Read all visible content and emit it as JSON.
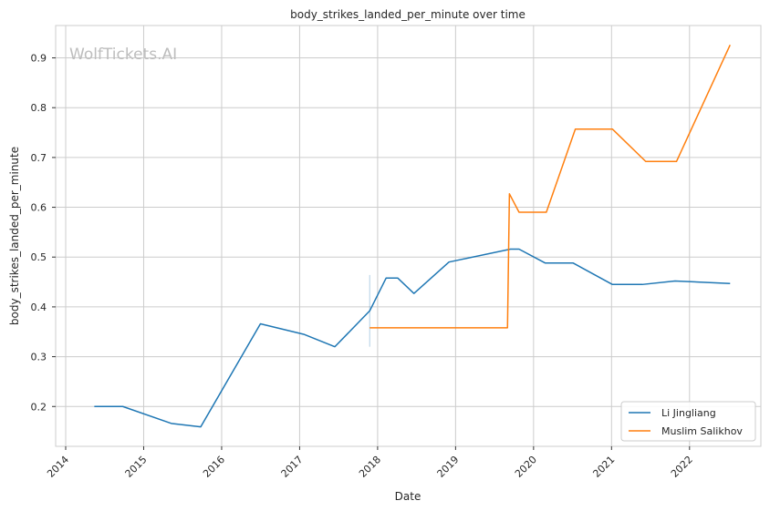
{
  "chart_data": {
    "type": "line",
    "title": "body_strikes_landed_per_minute over time",
    "xlabel": "Date",
    "ylabel": "body_strikes_landed_per_minute",
    "watermark": "WolfTickets.AI",
    "x_ticks": [
      "2014",
      "2015",
      "2016",
      "2017",
      "2018",
      "2019",
      "2020",
      "2021",
      "2022"
    ],
    "y_ticks": [
      "0.2",
      "0.3",
      "0.4",
      "0.5",
      "0.6",
      "0.7",
      "0.8",
      "0.9"
    ],
    "xlim": [
      "2013-11-15",
      "2022-12-01"
    ],
    "ylim": [
      0.12,
      0.965
    ],
    "grid": true,
    "legend_position": "bottom-right",
    "series": [
      {
        "name": "Li Jingliang",
        "color": "#1f77b4",
        "points": [
          [
            "2014-05-15",
            0.2
          ],
          [
            "2014-09-25",
            0.2
          ],
          [
            "2015-05-10",
            0.166
          ],
          [
            "2015-09-25",
            0.159
          ],
          [
            "2016-07-01",
            0.366
          ],
          [
            "2017-01-20",
            0.345
          ],
          [
            "2017-06-15",
            0.32
          ],
          [
            "2017-11-25",
            0.392
          ],
          [
            "2018-02-10",
            0.458
          ],
          [
            "2018-04-05",
            0.458
          ],
          [
            "2018-06-20",
            0.427
          ],
          [
            "2018-12-01",
            0.49
          ],
          [
            "2019-09-15",
            0.516
          ],
          [
            "2019-10-25",
            0.516
          ],
          [
            "2020-02-25",
            0.488
          ],
          [
            "2020-07-05",
            0.488
          ],
          [
            "2021-01-05",
            0.445
          ],
          [
            "2021-05-25",
            0.445
          ],
          [
            "2021-10-25",
            0.452
          ],
          [
            "2022-07-10",
            0.447
          ]
        ],
        "vertical_marks": [
          {
            "date": "2017-11-25",
            "low": 0.32,
            "high": 0.464
          }
        ]
      },
      {
        "name": "Muslim Salikhov",
        "color": "#ff7f0e",
        "points": [
          [
            "2017-11-25",
            0.358
          ],
          [
            "2019-09-01",
            0.358
          ],
          [
            "2019-09-10",
            0.627
          ],
          [
            "2019-10-25",
            0.59
          ],
          [
            "2020-03-01",
            0.59
          ],
          [
            "2020-07-15",
            0.757
          ],
          [
            "2021-01-05",
            0.757
          ],
          [
            "2021-06-10",
            0.692
          ],
          [
            "2021-11-01",
            0.692
          ],
          [
            "2022-07-10",
            0.926
          ]
        ]
      }
    ]
  }
}
